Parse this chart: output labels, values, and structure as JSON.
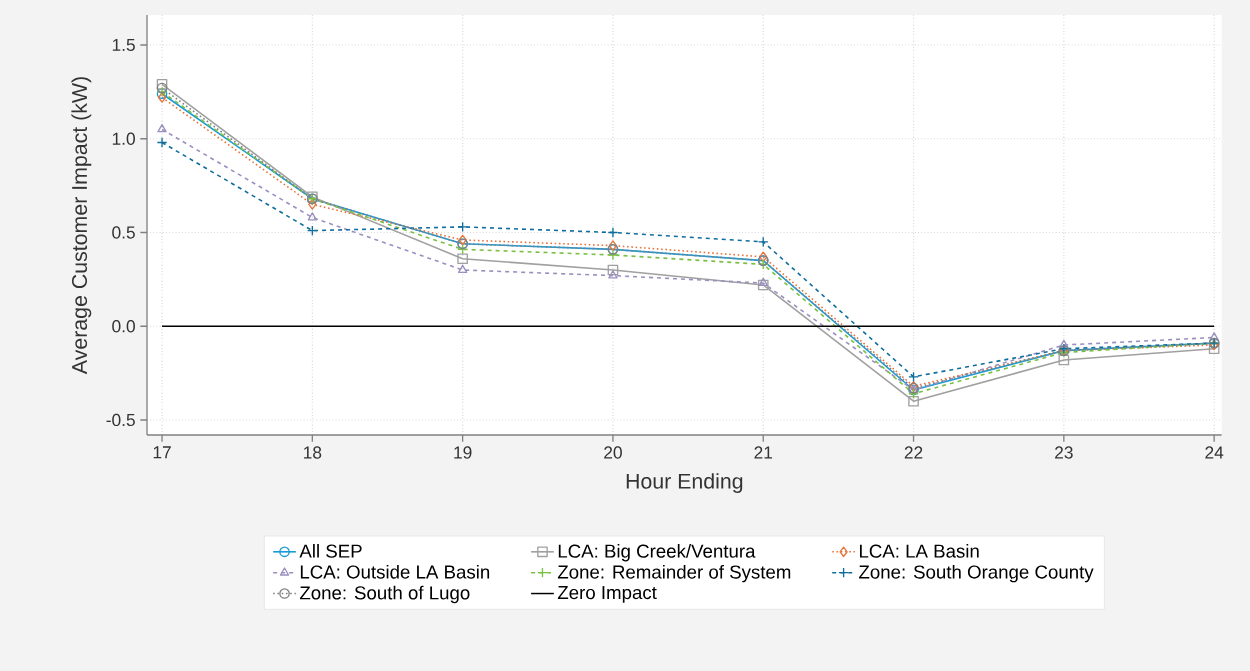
{
  "chart_data": {
    "type": "line",
    "xlabel": "Hour Ending",
    "ylabel": "Average Customer Impact (kW)",
    "x": [
      17,
      18,
      19,
      20,
      21,
      22,
      23,
      24
    ],
    "xlim": [
      16.9,
      24.05
    ],
    "ylim": [
      -0.58,
      1.66
    ],
    "xticks": [
      17,
      18,
      19,
      20,
      21,
      22,
      23,
      24
    ],
    "yticks": [
      -0.5,
      {
        "value": 0,
        "label": "0.0"
      },
      0.5,
      {
        "value": 1,
        "label": "1.0"
      },
      1.5
    ],
    "grid": true,
    "legend": "bottom",
    "series": [
      {
        "name": "All SEP",
        "color": "#1a9bd7",
        "marker": "circle",
        "line_style": "solid",
        "values": [
          1.24,
          0.68,
          0.44,
          0.41,
          0.35,
          -0.34,
          -0.13,
          -0.09
        ]
      },
      {
        "name": "LCA: Big Creek/Ventura",
        "color": "#a0a0a0",
        "marker": "square",
        "line_style": "solid",
        "values": [
          1.29,
          0.69,
          0.36,
          0.3,
          0.22,
          -0.4,
          -0.18,
          -0.12
        ]
      },
      {
        "name": "LCA: LA Basin",
        "color": "#e8743b",
        "marker": "diamond",
        "line_style": "dotted",
        "values": [
          1.22,
          0.65,
          0.46,
          0.43,
          0.37,
          -0.32,
          -0.13,
          -0.1
        ]
      },
      {
        "name": "LCA: Outside LA Basin",
        "color": "#9b8fc0",
        "marker": "triangle",
        "line_style": "dashed",
        "values": [
          1.05,
          0.58,
          0.3,
          0.27,
          0.23,
          -0.34,
          -0.1,
          -0.06
        ]
      },
      {
        "name": "Zone: Remainder of System",
        "color": "#7ac143",
        "marker": "cross",
        "line_style": "dashed",
        "values": [
          1.25,
          0.68,
          0.41,
          0.38,
          0.33,
          -0.36,
          -0.14,
          -0.09
        ]
      },
      {
        "name": "Zone: South Orange County",
        "color": "#0f6e9c",
        "marker": "cross",
        "line_style": "dashed",
        "values": [
          0.98,
          0.51,
          0.53,
          0.5,
          0.45,
          -0.27,
          -0.12,
          -0.09
        ]
      },
      {
        "name": "Zone: South of Lugo",
        "color": "#808080",
        "marker": "circle",
        "line_style": "dotted",
        "values": [
          1.27,
          0.68,
          0.44,
          0.41,
          0.35,
          -0.33,
          -0.13,
          -0.09
        ]
      }
    ],
    "ref_lines": [
      {
        "axis": "y",
        "value": 0,
        "label": "Zero Impact",
        "color": "#000000",
        "line_style": "solid"
      }
    ]
  }
}
